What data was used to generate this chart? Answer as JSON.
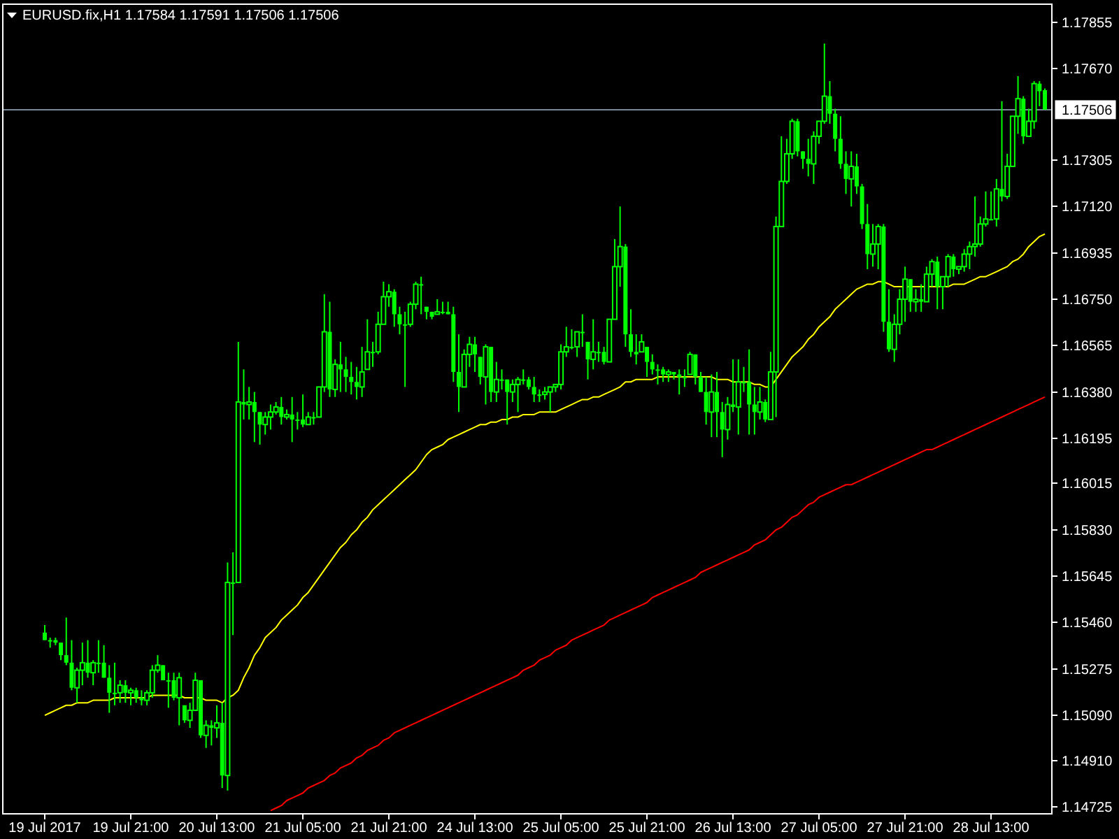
{
  "chart_data": {
    "type": "candlestick",
    "title": "EURUSD.fix,H1  1.17584 1.17591 1.17506 1.17506",
    "color": "#00ff00",
    "categories": [
      "19 Jul 2017",
      null,
      null,
      null,
      null,
      null,
      null,
      null,
      null,
      null,
      null,
      null,
      null,
      null,
      null,
      null,
      "19 Jul 21:00",
      null,
      null,
      null,
      null,
      null,
      null,
      null,
      null,
      null,
      null,
      null,
      null,
      null,
      null,
      null,
      "20 Jul 13:00",
      null,
      null,
      null,
      null,
      null,
      null,
      null,
      null,
      null,
      null,
      null,
      null,
      null,
      null,
      null,
      "21 Jul 05:00",
      null,
      null,
      null,
      null,
      null,
      null,
      null,
      null,
      null,
      null,
      null,
      null,
      null,
      null,
      null,
      "21 Jul 21:00",
      null,
      null,
      null,
      null,
      null,
      null,
      null,
      null,
      null,
      null,
      null,
      null,
      null,
      null,
      null,
      "24 Jul 13:00",
      null,
      null,
      null,
      null,
      null,
      null,
      null,
      null,
      null,
      null,
      null,
      null,
      null,
      null,
      null,
      "25 Jul 05:00",
      null,
      null,
      null,
      null,
      null,
      null,
      null,
      null,
      null,
      null,
      null,
      null,
      null,
      null,
      null,
      "25 Jul 21:00",
      null,
      null,
      null,
      null,
      null,
      null,
      null,
      null,
      null,
      null,
      null,
      null,
      null,
      null,
      null,
      "26 Jul 13:00",
      null,
      null,
      null,
      null,
      null,
      null,
      null,
      null,
      null,
      null,
      null,
      null,
      null,
      null,
      null,
      "27 Jul 05:00",
      null,
      null,
      null,
      null,
      null,
      null,
      null,
      null,
      null,
      null,
      null,
      null,
      null,
      null,
      null,
      "27 Jul 21:00",
      null,
      null,
      null,
      null,
      null,
      null,
      null,
      null,
      null,
      null,
      null,
      null,
      null,
      null,
      null,
      "28 Jul 13:00",
      null,
      null,
      null,
      null,
      null,
      null,
      null,
      null,
      null,
      null
    ],
    "ohlc": [
      [
        1.1542,
        1.1545,
        1.1539,
        1.1539
      ],
      [
        1.1539,
        1.154,
        1.1536,
        1.1539
      ],
      [
        1.1539,
        1.154,
        1.1537,
        1.1538
      ],
      [
        1.1538,
        1.1538,
        1.1531,
        1.1533
      ],
      [
        1.1533,
        1.1548,
        1.1529,
        1.153
      ],
      [
        1.153,
        1.1539,
        1.1519,
        1.152
      ],
      [
        1.152,
        1.1528,
        1.1514,
        1.1527
      ],
      [
        1.1527,
        1.1538,
        1.1521,
        1.153
      ],
      [
        1.153,
        1.1539,
        1.1524,
        1.1526
      ],
      [
        1.1526,
        1.1531,
        1.1521,
        1.153
      ],
      [
        1.153,
        1.1539,
        1.1526,
        1.153
      ],
      [
        1.153,
        1.1537,
        1.1524,
        1.1524
      ],
      [
        1.1524,
        1.1529,
        1.151,
        1.1518
      ],
      [
        1.1518,
        1.153,
        1.1513,
        1.1518
      ],
      [
        1.1518,
        1.1523,
        1.1514,
        1.1521
      ],
      [
        1.1521,
        1.1523,
        1.1514,
        1.1518
      ],
      [
        1.1518,
        1.152,
        1.1513,
        1.1519
      ],
      [
        1.1519,
        1.152,
        1.1514,
        1.1516
      ],
      [
        1.1516,
        1.1519,
        1.1513,
        1.1515
      ],
      [
        1.1515,
        1.1519,
        1.1513,
        1.1518
      ],
      [
        1.1518,
        1.1529,
        1.1516,
        1.1527
      ],
      [
        1.1527,
        1.1533,
        1.1526,
        1.1529
      ],
      [
        1.1529,
        1.1529,
        1.1523,
        1.1523
      ],
      [
        1.1523,
        1.1526,
        1.1512,
        1.1523
      ],
      [
        1.1523,
        1.1526,
        1.1515,
        1.1516
      ],
      [
        1.1516,
        1.1526,
        1.1505,
        1.1524
      ],
      [
        1.1513,
        1.1513,
        1.1506,
        1.1507
      ],
      [
        1.1507,
        1.1514,
        1.1504,
        1.1511
      ],
      [
        1.1511,
        1.1526,
        1.1511,
        1.1523
      ],
      [
        1.1523,
        1.1523,
        1.15,
        1.1501
      ],
      [
        1.1501,
        1.1507,
        1.1496,
        1.1505
      ],
      [
        1.1505,
        1.1507,
        1.1497,
        1.1504
      ],
      [
        1.1504,
        1.1513,
        1.15,
        1.1506
      ],
      [
        1.1506,
        1.1514,
        1.148,
        1.1485
      ],
      [
        1.1485,
        1.157,
        1.1479,
        1.1562
      ],
      [
        1.1562,
        1.1574,
        1.1541,
        1.1562
      ],
      [
        1.1562,
        1.1658,
        1.1562,
        1.1634
      ],
      [
        1.1634,
        1.1647,
        1.1627,
        1.1633
      ],
      [
        1.1633,
        1.164,
        1.1627,
        1.1634
      ],
      [
        1.1634,
        1.1638,
        1.1618,
        1.163
      ],
      [
        1.163,
        1.163,
        1.1617,
        1.1625
      ],
      [
        1.1625,
        1.163,
        1.1621,
        1.1628
      ],
      [
        1.1628,
        1.1633,
        1.1623,
        1.163
      ],
      [
        1.163,
        1.1634,
        1.1629,
        1.1632
      ],
      [
        1.1632,
        1.1636,
        1.1625,
        1.1628
      ],
      [
        1.1628,
        1.1631,
        1.1627,
        1.1629
      ],
      [
        1.1629,
        1.1636,
        1.1618,
        1.1627
      ],
      [
        1.1627,
        1.163,
        1.1623,
        1.1627
      ],
      [
        1.1627,
        1.1637,
        1.1624,
        1.1625
      ],
      [
        1.1625,
        1.163,
        1.1625,
        1.1628
      ],
      [
        1.1628,
        1.163,
        1.1625,
        1.1628
      ],
      [
        1.1628,
        1.164,
        1.1628,
        1.164
      ],
      [
        1.164,
        1.1677,
        1.1638,
        1.1662
      ],
      [
        1.1662,
        1.1674,
        1.1636,
        1.1639
      ],
      [
        1.1639,
        1.1651,
        1.1636,
        1.1649
      ],
      [
        1.1649,
        1.1658,
        1.1638,
        1.1647
      ],
      [
        1.1647,
        1.1652,
        1.1638,
        1.1644
      ],
      [
        1.1644,
        1.165,
        1.1637,
        1.1642
      ],
      [
        1.1642,
        1.1648,
        1.1635,
        1.164
      ],
      [
        1.164,
        1.1656,
        1.1636,
        1.1646
      ],
      [
        1.1647,
        1.1667,
        1.1647,
        1.1654
      ],
      [
        1.1654,
        1.1658,
        1.1648,
        1.1654
      ],
      [
        1.1654,
        1.167,
        1.1653,
        1.1665
      ],
      [
        1.1665,
        1.1682,
        1.1665,
        1.1676
      ],
      [
        1.1676,
        1.1681,
        1.1672,
        1.1678
      ],
      [
        1.1678,
        1.1679,
        1.1664,
        1.1669
      ],
      [
        1.1669,
        1.1672,
        1.1661,
        1.1665
      ],
      [
        1.1665,
        1.167,
        1.164,
        1.1665
      ],
      [
        1.1665,
        1.1674,
        1.1664,
        1.1673
      ],
      [
        1.1673,
        1.1682,
        1.1671,
        1.1681
      ],
      [
        1.1681,
        1.1684,
        1.1669,
        1.1681
      ],
      [
        1.1672,
        1.1672,
        1.1667,
        1.167
      ],
      [
        1.167,
        1.167,
        1.1667,
        1.1668
      ],
      [
        1.1669,
        1.1675,
        1.1669,
        1.167
      ],
      [
        1.167,
        1.1674,
        1.1669,
        1.167
      ],
      [
        1.167,
        1.1674,
        1.1669,
        1.1669
      ],
      [
        1.1669,
        1.1672,
        1.1642,
        1.1646
      ],
      [
        1.1646,
        1.1661,
        1.163,
        1.164
      ],
      [
        1.164,
        1.1655,
        1.164,
        1.1653
      ],
      [
        1.1653,
        1.166,
        1.1648,
        1.1657
      ],
      [
        1.1657,
        1.166,
        1.1646,
        1.1653
      ],
      [
        1.1652,
        1.1652,
        1.1641,
        1.1644
      ],
      [
        1.1644,
        1.1657,
        1.1633,
        1.1656
      ],
      [
        1.1656,
        1.1656,
        1.1634,
        1.1638
      ],
      [
        1.1638,
        1.165,
        1.1634,
        1.1643
      ],
      [
        1.1643,
        1.1647,
        1.1639,
        1.1643
      ],
      [
        1.1643,
        1.1643,
        1.1625,
        1.1638
      ],
      [
        1.1638,
        1.1643,
        1.1634,
        1.1641
      ],
      [
        1.1641,
        1.1644,
        1.163,
        1.1643
      ],
      [
        1.1643,
        1.1647,
        1.1641,
        1.1643
      ],
      [
        1.1643,
        1.1644,
        1.1639,
        1.164
      ],
      [
        1.164,
        1.1644,
        1.1634,
        1.1637
      ],
      [
        1.1637,
        1.1639,
        1.1634,
        1.1637
      ],
      [
        1.1637,
        1.164,
        1.1635,
        1.1638
      ],
      [
        1.1638,
        1.164,
        1.163,
        1.164
      ],
      [
        1.164,
        1.1641,
        1.1638,
        1.1641
      ],
      [
        1.1641,
        1.1657,
        1.1639,
        1.1654
      ],
      [
        1.1654,
        1.1664,
        1.1652,
        1.1656
      ],
      [
        1.1656,
        1.1663,
        1.1655,
        1.1656
      ],
      [
        1.1656,
        1.1662,
        1.1652,
        1.1662
      ],
      [
        1.1662,
        1.1669,
        1.1656,
        1.1662
      ],
      [
        1.1658,
        1.1658,
        1.1643,
        1.1651
      ],
      [
        1.1651,
        1.1667,
        1.1647,
        1.1654
      ],
      [
        1.1654,
        1.1658,
        1.165,
        1.1654
      ],
      [
        1.1654,
        1.1656,
        1.1649,
        1.165
      ],
      [
        1.165,
        1.1667,
        1.165,
        1.1667
      ],
      [
        1.1667,
        1.1699,
        1.1667,
        1.1688
      ],
      [
        1.1688,
        1.1712,
        1.168,
        1.1696
      ],
      [
        1.1696,
        1.1697,
        1.1656,
        1.1661
      ],
      [
        1.1661,
        1.1671,
        1.1652,
        1.1654
      ],
      [
        1.1654,
        1.1661,
        1.1649,
        1.1653
      ],
      [
        1.1654,
        1.1661,
        1.1654,
        1.1658
      ],
      [
        1.1656,
        1.1656,
        1.1644,
        1.165
      ],
      [
        1.165,
        1.1653,
        1.1645,
        1.1647
      ],
      [
        1.1647,
        1.1649,
        1.1641,
        1.1647
      ],
      [
        1.1647,
        1.1648,
        1.1642,
        1.1645
      ],
      [
        1.1645,
        1.1647,
        1.1642,
        1.1646
      ],
      [
        1.1646,
        1.1646,
        1.1643,
        1.1645
      ],
      [
        1.1645,
        1.1647,
        1.1637,
        1.1644
      ],
      [
        1.1644,
        1.1647,
        1.164,
        1.1644
      ],
      [
        1.1645,
        1.1654,
        1.1645,
        1.1653
      ],
      [
        1.1653,
        1.1653,
        1.1641,
        1.1644
      ],
      [
        1.1644,
        1.1646,
        1.1638,
        1.1638
      ],
      [
        1.1638,
        1.1644,
        1.1625,
        1.163
      ],
      [
        1.163,
        1.1645,
        1.162,
        1.1638
      ],
      [
        1.1638,
        1.1646,
        1.162,
        1.163
      ],
      [
        1.163,
        1.1634,
        1.1612,
        1.1623
      ],
      [
        1.1623,
        1.1636,
        1.1619,
        1.1633
      ],
      [
        1.1633,
        1.1651,
        1.163,
        1.1632
      ],
      [
        1.1632,
        1.1651,
        1.1621,
        1.1642
      ],
      [
        1.1642,
        1.1648,
        1.1638,
        1.1642
      ],
      [
        1.1642,
        1.1655,
        1.1621,
        1.1633
      ],
      [
        1.1633,
        1.164,
        1.1621,
        1.163
      ],
      [
        1.163,
        1.164,
        1.1627,
        1.1634
      ],
      [
        1.1634,
        1.1635,
        1.1626,
        1.1627
      ],
      [
        1.1627,
        1.1654,
        1.1627,
        1.1646
      ],
      [
        1.1646,
        1.1708,
        1.1628,
        1.1704
      ],
      [
        1.1704,
        1.174,
        1.1704,
        1.1722
      ],
      [
        1.1722,
        1.1739,
        1.1721,
        1.1733
      ],
      [
        1.1733,
        1.1747,
        1.1731,
        1.1746
      ],
      [
        1.1746,
        1.1747,
        1.1732,
        1.1734
      ],
      [
        1.1734,
        1.1734,
        1.1727,
        1.1731
      ],
      [
        1.1731,
        1.1739,
        1.1724,
        1.1729
      ],
      [
        1.1729,
        1.1742,
        1.1721,
        1.174
      ],
      [
        1.174,
        1.1746,
        1.1737,
        1.1746
      ],
      [
        1.1746,
        1.1777,
        1.1745,
        1.1756
      ],
      [
        1.1756,
        1.1762,
        1.1745,
        1.1749
      ],
      [
        1.1749,
        1.1751,
        1.1734,
        1.1739
      ],
      [
        1.1739,
        1.1748,
        1.1727,
        1.1729
      ],
      [
        1.1729,
        1.1734,
        1.1717,
        1.1723
      ],
      [
        1.1723,
        1.1734,
        1.1712,
        1.1728
      ],
      [
        1.1728,
        1.1733,
        1.1717,
        1.172
      ],
      [
        1.172,
        1.1721,
        1.1703,
        1.1705
      ],
      [
        1.1705,
        1.1713,
        1.1687,
        1.1693
      ],
      [
        1.1693,
        1.1705,
        1.1688,
        1.1697
      ],
      [
        1.1697,
        1.1705,
        1.1687,
        1.1704
      ],
      [
        1.1704,
        1.1705,
        1.1662,
        1.1666
      ],
      [
        1.1666,
        1.1679,
        1.1654,
        1.1655
      ],
      [
        1.1655,
        1.1669,
        1.165,
        1.1665
      ],
      [
        1.1665,
        1.1679,
        1.1661,
        1.1675
      ],
      [
        1.1675,
        1.1688,
        1.1666,
        1.1683
      ],
      [
        1.1683,
        1.1683,
        1.167,
        1.1674
      ],
      [
        1.1674,
        1.1679,
        1.167,
        1.1675
      ],
      [
        1.1675,
        1.1681,
        1.167,
        1.1674
      ],
      [
        1.1674,
        1.1688,
        1.1674,
        1.1685
      ],
      [
        1.1685,
        1.1691,
        1.168,
        1.169
      ],
      [
        1.169,
        1.1692,
        1.1671,
        1.168
      ],
      [
        1.168,
        1.1684,
        1.1671,
        1.1684
      ],
      [
        1.1684,
        1.1693,
        1.168,
        1.1692
      ],
      [
        1.1692,
        1.1693,
        1.1684,
        1.1687
      ],
      [
        1.1687,
        1.1688,
        1.1685,
        1.1688
      ],
      [
        1.1688,
        1.1695,
        1.1686,
        1.1693
      ],
      [
        1.1693,
        1.1698,
        1.1687,
        1.1696
      ],
      [
        1.1696,
        1.1716,
        1.1692,
        1.1697
      ],
      [
        1.1697,
        1.1708,
        1.1696,
        1.1705
      ],
      [
        1.1705,
        1.1718,
        1.1704,
        1.1707
      ],
      [
        1.1707,
        1.1718,
        1.1707,
        1.1707
      ],
      [
        1.1707,
        1.1723,
        1.1704,
        1.1719
      ],
      [
        1.1719,
        1.1754,
        1.1714,
        1.1716
      ],
      [
        1.1716,
        1.1733,
        1.1715,
        1.1728
      ],
      [
        1.1728,
        1.1748,
        1.1728,
        1.1748
      ],
      [
        1.1748,
        1.1764,
        1.1741,
        1.1755
      ],
      [
        1.1755,
        1.1756,
        1.1737,
        1.174
      ],
      [
        1.174,
        1.1751,
        1.174,
        1.1746
      ],
      [
        1.1746,
        1.1762,
        1.1743,
        1.1761
      ],
      [
        1.1761,
        1.1762,
        1.1752,
        1.1758
      ],
      [
        1.17584,
        1.17591,
        1.17506,
        1.17506
      ]
    ],
    "series": [
      {
        "type": "line",
        "color": "#ffff00",
        "values": [
          1.1509,
          1.151,
          1.1511,
          1.1512,
          1.1513,
          1.1513,
          1.1514,
          1.1514,
          1.1514,
          1.1515,
          1.1515,
          1.1515,
          1.1515,
          1.1516,
          1.1516,
          1.1516,
          1.1516,
          1.1516,
          1.1516,
          1.1516,
          1.1517,
          1.1517,
          1.1517,
          1.1517,
          1.1517,
          1.1517,
          1.1516,
          1.1516,
          1.1516,
          1.1516,
          1.1515,
          1.1515,
          1.1515,
          1.1514,
          1.1516,
          1.1517,
          1.1519,
          1.1524,
          1.1528,
          1.1533,
          1.1536,
          1.154,
          1.1542,
          1.1544,
          1.1547,
          1.1549,
          1.1551,
          1.1553,
          1.1556,
          1.1558,
          1.1561,
          1.1564,
          1.1567,
          1.157,
          1.1573,
          1.1576,
          1.1578,
          1.1581,
          1.1583,
          1.1586,
          1.1588,
          1.1591,
          1.1593,
          1.1595,
          1.1597,
          1.1599,
          1.1601,
          1.1603,
          1.1605,
          1.1607,
          1.161,
          1.1613,
          1.1615,
          1.1616,
          1.1617,
          1.1619,
          1.162,
          1.1621,
          1.1622,
          1.1623,
          1.1624,
          1.1625,
          1.1625,
          1.1626,
          1.1626,
          1.1627,
          1.1627,
          1.1628,
          1.1628,
          1.1629,
          1.1629,
          1.1629,
          1.163,
          1.163,
          1.163,
          1.163,
          1.1631,
          1.1632,
          1.1633,
          1.1634,
          1.1635,
          1.1635,
          1.1636,
          1.1636,
          1.1637,
          1.1638,
          1.1639,
          1.164,
          1.1642,
          1.1642,
          1.1643,
          1.1643,
          1.1643,
          1.1643,
          1.1644,
          1.1644,
          1.1644,
          1.1644,
          1.1644,
          1.1644,
          1.1644,
          1.1644,
          1.1644,
          1.1644,
          1.1644,
          1.1643,
          1.1643,
          1.1643,
          1.1642,
          1.1642,
          1.1642,
          1.1642,
          1.1641,
          1.1641,
          1.164,
          1.164,
          1.1643,
          1.1646,
          1.1649,
          1.1652,
          1.1654,
          1.1656,
          1.1659,
          1.1661,
          1.1664,
          1.1666,
          1.1668,
          1.1671,
          1.1673,
          1.1675,
          1.1677,
          1.1679,
          1.168,
          1.1681,
          1.1681,
          1.1682,
          1.1682,
          1.1681,
          1.168,
          1.168,
          1.168,
          1.168,
          1.168,
          1.168,
          1.168,
          1.168,
          1.168,
          1.168,
          1.168,
          1.1681,
          1.1681,
          1.1681,
          1.1682,
          1.1683,
          1.1684,
          1.1684,
          1.1685,
          1.1686,
          1.1687,
          1.1688,
          1.169,
          1.1691,
          1.1693,
          1.1696,
          1.1698,
          1.17,
          1.1701
        ]
      },
      {
        "type": "line",
        "color": "#ff0000",
        "values": [
          null,
          null,
          null,
          null,
          null,
          null,
          null,
          null,
          null,
          null,
          null,
          null,
          null,
          null,
          null,
          null,
          null,
          null,
          null,
          null,
          null,
          null,
          null,
          null,
          null,
          null,
          null,
          null,
          null,
          null,
          null,
          null,
          null,
          null,
          null,
          null,
          null,
          null,
          null,
          null,
          null,
          null,
          1.1471,
          1.1472,
          1.1473,
          1.1475,
          1.1476,
          1.1477,
          1.1478,
          1.148,
          1.1481,
          1.1482,
          1.1483,
          1.1485,
          1.1486,
          1.1488,
          1.1489,
          1.149,
          1.1492,
          1.1493,
          1.1495,
          1.1496,
          1.1497,
          1.1499,
          1.15,
          1.1502,
          1.1503,
          1.1504,
          1.1505,
          1.1506,
          1.1507,
          1.1508,
          1.1509,
          1.151,
          1.1511,
          1.1512,
          1.1513,
          1.1514,
          1.1515,
          1.1516,
          1.1517,
          1.1518,
          1.1519,
          1.152,
          1.1521,
          1.1522,
          1.1523,
          1.1524,
          1.1525,
          1.1527,
          1.1528,
          1.1529,
          1.1531,
          1.1532,
          1.1533,
          1.1535,
          1.1536,
          1.1537,
          1.1539,
          1.154,
          1.1541,
          1.1542,
          1.1543,
          1.1544,
          1.1545,
          1.1547,
          1.1548,
          1.1549,
          1.155,
          1.1551,
          1.1552,
          1.1553,
          1.1554,
          1.1556,
          1.1557,
          1.1558,
          1.1559,
          1.156,
          1.1561,
          1.1562,
          1.1563,
          1.1564,
          1.1566,
          1.1567,
          1.1568,
          1.1569,
          1.157,
          1.1571,
          1.1572,
          1.1573,
          1.1574,
          1.1575,
          1.1577,
          1.1578,
          1.1579,
          1.1581,
          1.1583,
          1.1584,
          1.1586,
          1.1588,
          1.1589,
          1.1591,
          1.1593,
          1.1594,
          1.1596,
          1.1597,
          1.1598,
          1.1599,
          1.16,
          1.1601,
          1.1601,
          1.1602,
          1.1603,
          1.1604,
          1.1605,
          1.1606,
          1.1607,
          1.1608,
          1.1609,
          1.161,
          1.1611,
          1.1612,
          1.1613,
          1.1614,
          1.1615,
          1.1615,
          1.1616,
          1.1617,
          1.1618,
          1.1619,
          1.162,
          1.1621,
          1.1622,
          1.1623,
          1.1624,
          1.1625,
          1.1626,
          1.1627,
          1.1628,
          1.1629,
          1.163,
          1.1631,
          1.1632,
          1.1633,
          1.1634,
          1.1635,
          1.1636
        ]
      }
    ],
    "ylim": [
      1.14697,
      1.17927
    ],
    "yticks": [
      1.17855,
      {
        "value": 1.1767,
        "label": "1.17670"
      },
      1.17305,
      {
        "value": 1.1712,
        "label": "1.17120"
      },
      1.16935,
      {
        "value": 1.1675,
        "label": "1.16750"
      },
      1.16565,
      {
        "value": 1.1638,
        "label": "1.16380"
      },
      1.16195,
      1.16015,
      {
        "value": 1.1583,
        "label": "1.15830"
      },
      1.15645,
      {
        "value": 1.1546,
        "label": "1.15460"
      },
      1.15275,
      {
        "value": 1.1509,
        "label": "1.15090"
      },
      {
        "value": 1.1491,
        "label": "1.14910"
      },
      1.14725
    ],
    "ref_lines": [
      {
        "axis": "y",
        "value": 1.17506,
        "label": "1.17506",
        "color": "#778899"
      }
    ]
  }
}
